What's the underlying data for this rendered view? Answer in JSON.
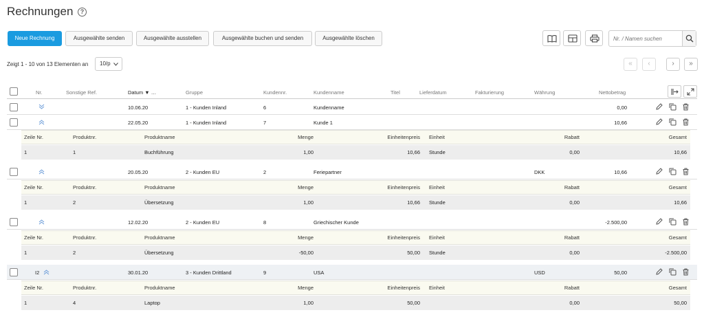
{
  "page": {
    "title": "Rechnungen",
    "help": "?"
  },
  "toolbar": {
    "new": "Neue Rechnung",
    "send": "Ausgewählte senden",
    "issue": "Ausgewählte ausstellen",
    "book_send": "Ausgewählte buchen und senden",
    "delete": "Ausgewählte löschen"
  },
  "search": {
    "placeholder": "Nr. / Namen suchen"
  },
  "list": {
    "info": "Zeigt 1 - 10 von 13 Elementen an",
    "per_page": "10/p"
  },
  "pager": {
    "first": "«",
    "prev": "‹",
    "next": "›",
    "last": "»"
  },
  "columns": {
    "nr": "Nr.",
    "ref": "Sonstige Ref.",
    "date": "Datum",
    "group": "Gruppe",
    "custno": "Kundennr.",
    "custname": "Kundenname",
    "titel": "Titel",
    "delivery": "Lieferdatum",
    "billing": "Fakturierung",
    "currency": "Währung",
    "net": "Nettobetrag"
  },
  "subcolumns": {
    "line": "Zeile Nr.",
    "prodno": "Produktnr.",
    "prodname": "Produktname",
    "qty": "Menge",
    "price": "Einheitenpreis",
    "unit": "Einheit",
    "discount": "Rabatt",
    "total": "Gesamt"
  },
  "invoices": [
    {
      "nr": "",
      "date": "10.06.20",
      "group": "1 - Kunden Inland",
      "custno": "6",
      "custname": "Kundenname",
      "currency": "",
      "net": "0,00",
      "expanded": false
    },
    {
      "nr": "",
      "date": "22.05.20",
      "group": "1 - Kunden Inland",
      "custno": "7",
      "custname": "Kunde 1",
      "currency": "",
      "net": "10,66",
      "expanded": true,
      "line": {
        "line": "1",
        "prodno": "1",
        "prodname": "Buchführung",
        "qty": "1,00",
        "price": "10,66",
        "unit": "Stunde",
        "discount": "0,00",
        "total": "10,66"
      }
    },
    {
      "nr": "",
      "date": "20.05.20",
      "group": "2 - Kunden EU",
      "custno": "2",
      "custname": "Feriepartner",
      "currency": "DKK",
      "net": "10,66",
      "expanded": true,
      "line": {
        "line": "1",
        "prodno": "2",
        "prodname": "Übersetzung",
        "qty": "1,00",
        "price": "10,66",
        "unit": "Stunde",
        "discount": "0,00",
        "total": "10,66"
      }
    },
    {
      "nr": "",
      "date": "12.02.20",
      "group": "2 - Kunden EU",
      "custno": "8",
      "custname": "Griechischer Kunde",
      "currency": "",
      "net": "-2.500,00",
      "expanded": true,
      "line": {
        "line": "1",
        "prodno": "2",
        "prodname": "Übersetzung",
        "qty": "-50,00",
        "price": "50,00",
        "unit": "Stunde",
        "discount": "0,00",
        "total": "-2.500,00"
      }
    },
    {
      "nr": "I2",
      "date": "30.01.20",
      "group": "3 - Kunden Drittland",
      "custno": "9",
      "custname": "USA",
      "currency": "USD",
      "net": "50,00",
      "expanded": true,
      "line": {
        "line": "1",
        "prodno": "4",
        "prodname": "Laptop",
        "qty": "1,00",
        "price": "50,00",
        "unit": "",
        "discount": "0,00",
        "total": "50,00"
      }
    }
  ]
}
